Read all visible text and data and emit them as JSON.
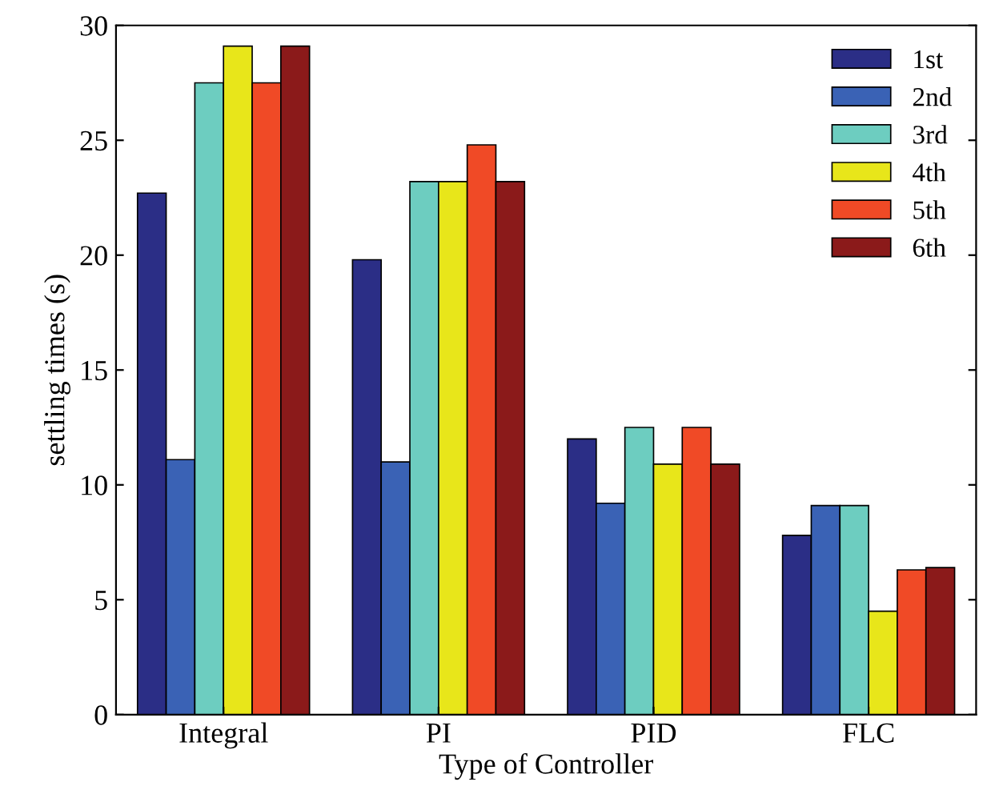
{
  "chart_data": {
    "type": "bar",
    "xlabel": "Type of Controller",
    "ylabel": "settling times (s)",
    "categories": [
      "Integral",
      "PI",
      "PID",
      "FLC"
    ],
    "series": [
      {
        "name": "1st",
        "color": "#2b2e86",
        "values": [
          22.7,
          19.8,
          12.0,
          7.8
        ]
      },
      {
        "name": "2nd",
        "color": "#3a62b5",
        "values": [
          11.1,
          11.0,
          9.2,
          9.1
        ]
      },
      {
        "name": "3rd",
        "color": "#6dcdc0",
        "values": [
          27.5,
          23.2,
          12.5,
          9.1
        ]
      },
      {
        "name": "4th",
        "color": "#e8e61a",
        "values": [
          29.1,
          23.2,
          10.9,
          4.5
        ]
      },
      {
        "name": "5th",
        "color": "#f04a26",
        "values": [
          27.5,
          24.8,
          12.5,
          6.3
        ]
      },
      {
        "name": "6th",
        "color": "#8b1a1a",
        "values": [
          29.1,
          23.2,
          10.9,
          6.4
        ]
      }
    ],
    "ylim": [
      0,
      30
    ],
    "yticks": [
      0,
      5,
      10,
      15,
      20,
      25,
      30
    ],
    "grid": false,
    "legend": "top right"
  }
}
